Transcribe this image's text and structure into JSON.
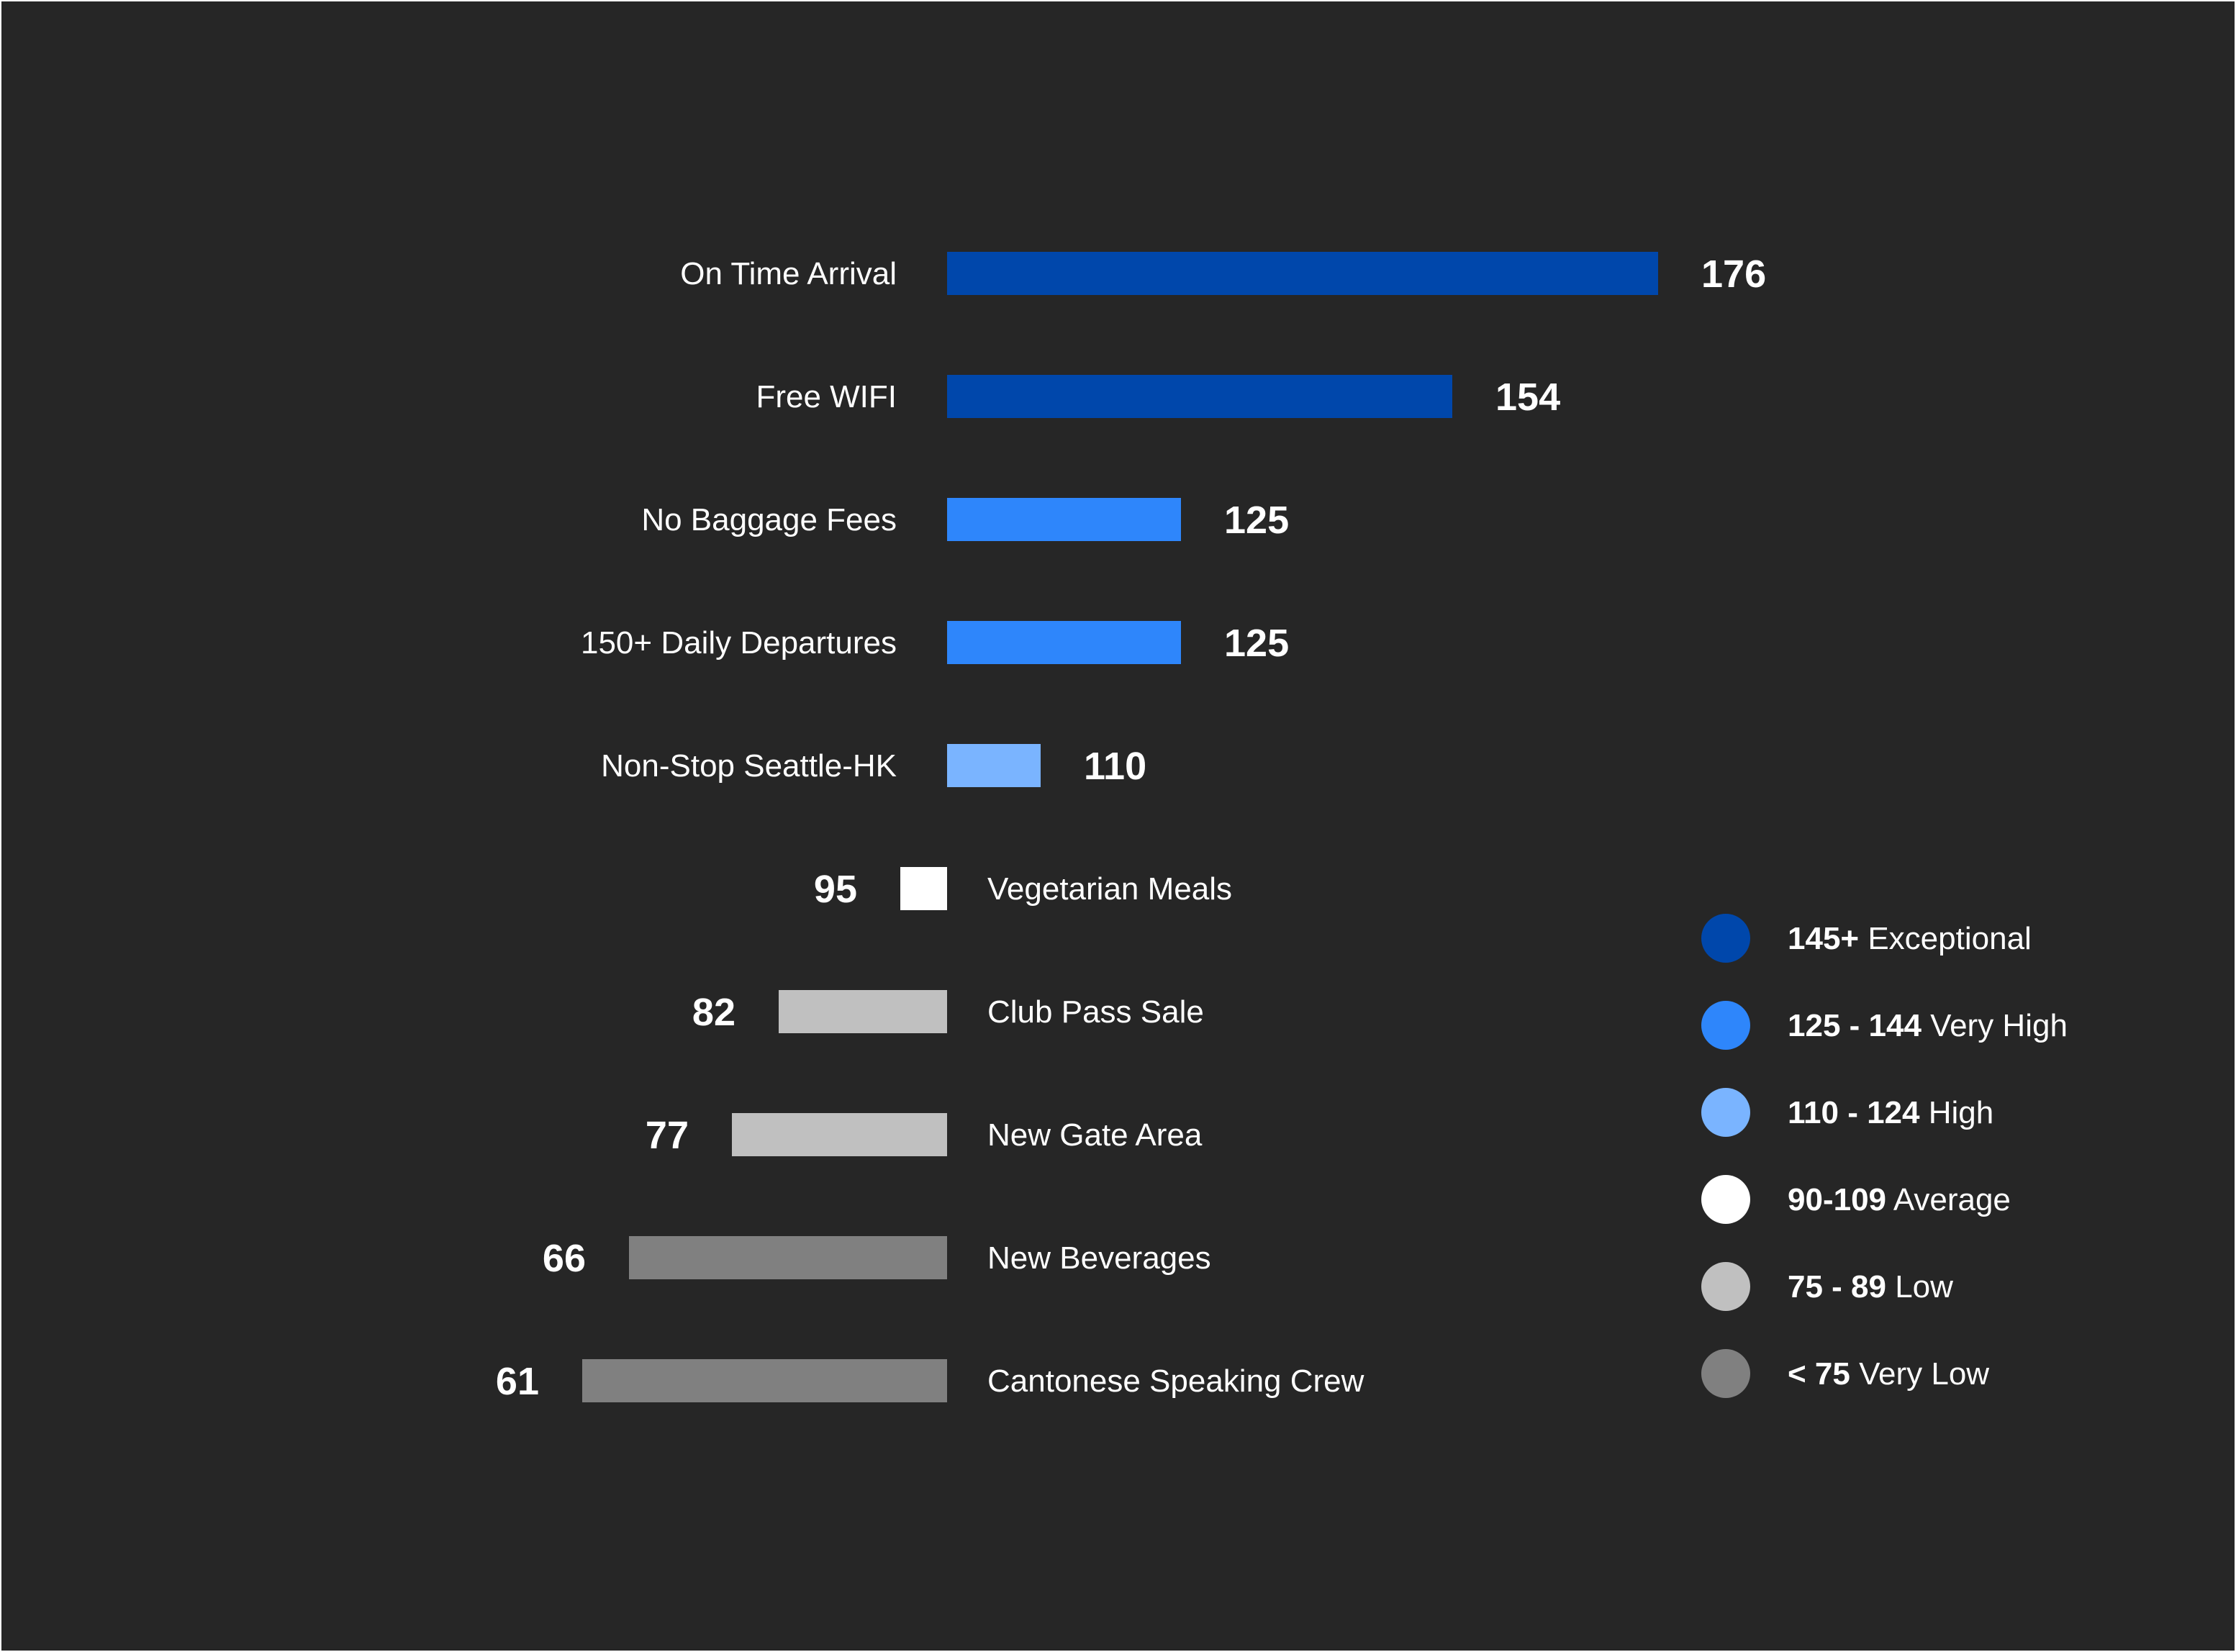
{
  "chart_data": {
    "type": "bar",
    "orientation": "horizontal",
    "baseline": 100,
    "categories": [
      "On Time Arrival",
      "Free WIFI",
      "No Baggage Fees",
      "150+ Daily Departures",
      "Non-Stop Seattle-HK",
      "Vegetarian Meals",
      "Club Pass Sale",
      "New Gate Area",
      "New Beverages",
      "Cantonese Speaking Crew"
    ],
    "values": [
      176,
      154,
      125,
      125,
      110,
      95,
      82,
      77,
      66,
      61
    ],
    "value_labels": [
      "176",
      "154",
      "125",
      "125",
      "110",
      "95",
      "82",
      "77",
      "66",
      "61"
    ],
    "legend": [
      {
        "bold": "145+",
        "text": " Exceptional",
        "color": "#0047ab"
      },
      {
        "bold": "125 - 144",
        "text": " Very High",
        "color": "#2e86fb"
      },
      {
        "bold": "110 - 124",
        "text": " High",
        "color": "#7ab4ff"
      },
      {
        "bold": "90-109",
        "text": " Average",
        "color": "#ffffff"
      },
      {
        "bold": "75 - 89",
        "text": " Low",
        "color": "#c0c0c0"
      },
      {
        "bold": "< 75",
        "text": " Very Low",
        "color": "#808080"
      }
    ],
    "legend_position": "right",
    "grid": false
  },
  "colors": {
    "background": "#262626",
    "text": "#ffffff"
  }
}
